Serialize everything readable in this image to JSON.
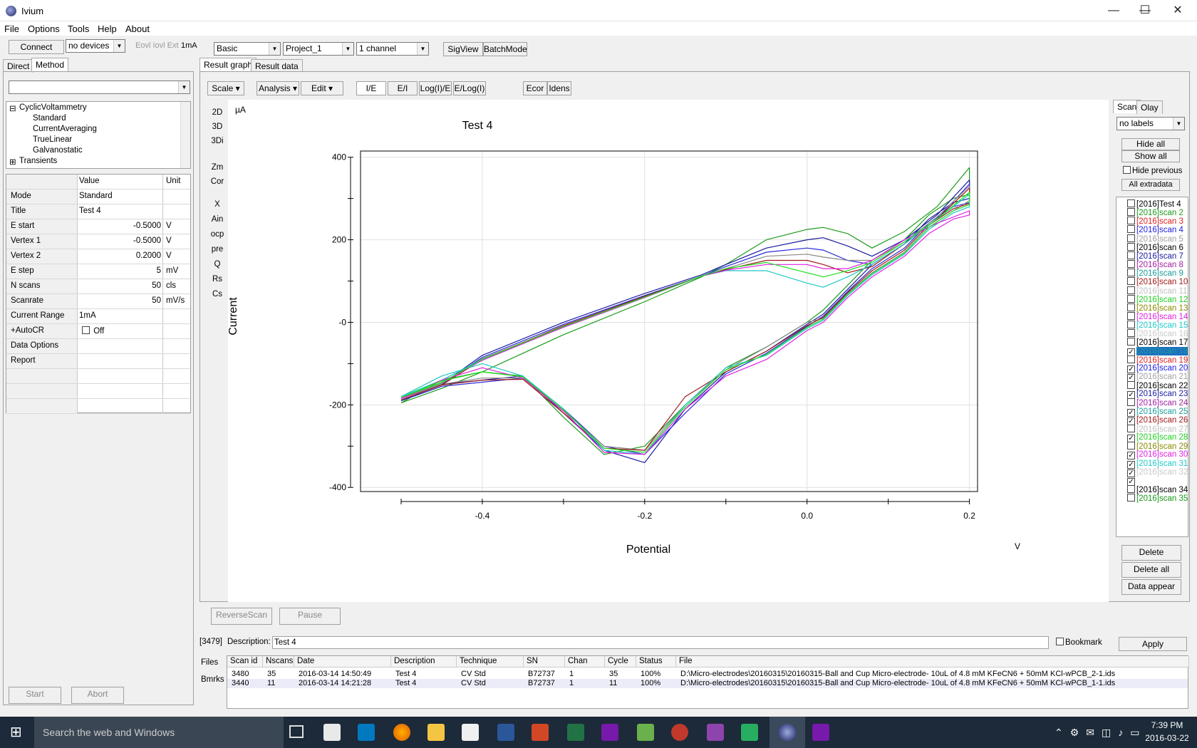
{
  "window": {
    "title": "Ivium",
    "minimize": "—",
    "maximize": "☐",
    "close": "✕"
  },
  "menu": [
    "File",
    "Options",
    "Tools",
    "Help",
    "About"
  ],
  "toolbar": {
    "connect": "Connect",
    "device": "no devices",
    "eovl": "Eovl Iovl Ext",
    "range": "1mA",
    "mode": "Basic",
    "project": "Project_1",
    "channel": "1 channel",
    "sigview": "SigView",
    "batchmode": "BatchMode"
  },
  "left_tabs": [
    "Direct",
    "Method"
  ],
  "tree": [
    "CyclicVoltammetry",
    "Standard",
    "CurrentAveraging",
    "TrueLinear",
    "Galvanostatic",
    "Transients"
  ],
  "params_header": {
    "value": "Value",
    "unit": "Unit"
  },
  "params": [
    {
      "name": "Mode",
      "value": "Standard",
      "unit": ""
    },
    {
      "name": "Title",
      "value": "Test 4",
      "unit": ""
    },
    {
      "name": "E start",
      "value": "-0.5000",
      "unit": "V"
    },
    {
      "name": "Vertex 1",
      "value": "-0.5000",
      "unit": "V"
    },
    {
      "name": "Vertex 2",
      "value": "0.2000",
      "unit": "V"
    },
    {
      "name": "E step",
      "value": "5",
      "unit": "mV"
    },
    {
      "name": "N scans",
      "value": "50",
      "unit": "cls"
    },
    {
      "name": "Scanrate",
      "value": "50",
      "unit": "mV/s"
    },
    {
      "name": "Current Range",
      "value": "1mA",
      "unit": ""
    },
    {
      "name": "+AutoCR",
      "value": "Off",
      "unit": ""
    },
    {
      "name": "Data Options",
      "value": "",
      "unit": ""
    },
    {
      "name": "Report",
      "value": "",
      "unit": ""
    }
  ],
  "left_buttons": {
    "start": "Start",
    "abort": "Abort"
  },
  "graph_tabs": [
    "Result graph",
    "Result data"
  ],
  "graph_toolbar": [
    "Scale",
    "Analysis",
    "Edit",
    "I/E",
    "E/I",
    "Log(I)/E",
    "E/Log(I)",
    "Ecor",
    "Idens"
  ],
  "graph_side": [
    "2D",
    "3D",
    "3Di",
    "Zm",
    "Cor",
    "X",
    "Ain",
    "ocp",
    "pre",
    "Q",
    "Rs",
    "Cs"
  ],
  "graph_buttons": {
    "reverse": "ReverseScan",
    "pause": "Pause"
  },
  "chart_data": {
    "type": "line",
    "title": "Test 4",
    "xlabel": "Potential",
    "ylabel": "Current",
    "xunit": "V",
    "yunit": "µA",
    "xlim": [
      -0.55,
      0.21
    ],
    "ylim": [
      -410,
      415
    ],
    "xticks": [
      "-0.4",
      "-0.2",
      "0.0",
      "0.2"
    ],
    "yticks": [
      "400",
      "200",
      "-0",
      "-200",
      "-400"
    ],
    "series": [
      {
        "color": "#1a9a1a",
        "x": [
          -0.5,
          -0.45,
          -0.4,
          -0.3,
          -0.2,
          -0.13,
          -0.1,
          -0.05,
          0.0,
          0.02,
          0.05,
          0.08,
          0.12,
          0.16,
          0.2,
          0.2,
          0.18,
          0.15,
          0.12,
          0.08,
          0.05,
          0.02,
          0.0,
          -0.05,
          -0.1,
          -0.15,
          -0.2,
          -0.25,
          -0.3,
          -0.35,
          -0.4,
          -0.45,
          -0.5
        ],
        "y": [
          -195,
          -160,
          -120,
          -30,
          50,
          110,
          140,
          200,
          225,
          230,
          215,
          180,
          220,
          280,
          375,
          310,
          300,
          260,
          200,
          150,
          90,
          30,
          0,
          -60,
          -110,
          -200,
          -300,
          -320,
          -230,
          -130,
          -120,
          -140,
          -195
        ]
      },
      {
        "color": "#1a1aa0",
        "x": [
          -0.5,
          -0.45,
          -0.4,
          -0.3,
          -0.2,
          -0.13,
          -0.1,
          -0.05,
          0.0,
          0.02,
          0.05,
          0.08,
          0.12,
          0.16,
          0.2,
          0.2,
          0.18,
          0.15,
          0.12,
          0.08,
          0.05,
          0.02,
          0.0,
          -0.05,
          -0.1,
          -0.15,
          -0.2,
          -0.25,
          -0.3,
          -0.35,
          -0.4,
          -0.45,
          -0.5
        ],
        "y": [
          -185,
          -150,
          -80,
          0,
          70,
          115,
          140,
          180,
          200,
          205,
          185,
          160,
          200,
          260,
          345,
          300,
          290,
          250,
          190,
          140,
          80,
          20,
          -5,
          -70,
          -120,
          -210,
          -340,
          -310,
          -220,
          -130,
          -140,
          -150,
          -185
        ]
      },
      {
        "color": "#2a2ad8",
        "x": [
          -0.5,
          -0.45,
          -0.4,
          -0.3,
          -0.2,
          -0.13,
          -0.1,
          -0.05,
          0.0,
          0.02,
          0.05,
          0.08,
          0.12,
          0.16,
          0.2,
          0.2,
          0.18,
          0.15,
          0.12,
          0.08,
          0.05,
          0.02,
          0.0,
          -0.05,
          -0.1,
          -0.15,
          -0.2,
          -0.25,
          -0.3,
          -0.35,
          -0.4,
          -0.45,
          -0.5
        ],
        "y": [
          -190,
          -150,
          -85,
          -5,
          65,
          112,
          135,
          170,
          180,
          175,
          150,
          140,
          190,
          250,
          335,
          290,
          280,
          240,
          180,
          130,
          75,
          15,
          -10,
          -75,
          -125,
          -220,
          -320,
          -300,
          -210,
          -135,
          -145,
          -155,
          -190
        ]
      },
      {
        "color": "#888888",
        "x": [
          -0.5,
          -0.45,
          -0.4,
          -0.3,
          -0.2,
          -0.13,
          -0.1,
          -0.05,
          0.0,
          0.02,
          0.05,
          0.08,
          0.12,
          0.16,
          0.2,
          0.2,
          0.18,
          0.15,
          0.12,
          0.08,
          0.05,
          0.02,
          0.0,
          -0.05,
          -0.1,
          -0.15,
          -0.2,
          -0.25,
          -0.3,
          -0.35,
          -0.4,
          -0.45,
          -0.5
        ],
        "y": [
          -185,
          -148,
          -88,
          -10,
          62,
          112,
          130,
          160,
          165,
          158,
          150,
          150,
          195,
          255,
          330,
          295,
          270,
          230,
          170,
          120,
          70,
          10,
          0,
          -60,
          -115,
          -200,
          -310,
          -300,
          -215,
          -135,
          -135,
          -150,
          -185
        ]
      },
      {
        "color": "#a01a1a",
        "x": [
          -0.5,
          -0.45,
          -0.4,
          -0.3,
          -0.2,
          -0.13,
          -0.1,
          -0.05,
          0.0,
          0.02,
          0.05,
          0.08,
          0.12,
          0.16,
          0.2,
          0.2,
          0.18,
          0.15,
          0.12,
          0.08,
          0.05,
          0.02,
          0.0,
          -0.05,
          -0.1,
          -0.15,
          -0.2,
          -0.25,
          -0.3,
          -0.35,
          -0.4,
          -0.45,
          -0.5
        ],
        "y": [
          -188,
          -152,
          -90,
          -8,
          63,
          112,
          128,
          150,
          150,
          140,
          120,
          135,
          190,
          250,
          325,
          288,
          275,
          235,
          175,
          125,
          72,
          12,
          -8,
          -70,
          -120,
          -180,
          -310,
          -305,
          -220,
          -138,
          -140,
          -152,
          -188
        ]
      },
      {
        "color": "#20c8c8",
        "x": [
          -0.5,
          -0.45,
          -0.4,
          -0.3,
          -0.2,
          -0.13,
          -0.1,
          -0.05,
          0.0,
          0.02,
          0.05,
          0.08,
          0.12,
          0.16,
          0.2,
          0.2,
          0.18,
          0.15,
          0.12,
          0.08,
          0.05,
          0.02,
          0.0,
          -0.05,
          -0.1,
          -0.15,
          -0.2,
          -0.25,
          -0.3,
          -0.35,
          -0.4,
          -0.45,
          -0.5
        ],
        "y": [
          -180,
          -140,
          -90,
          -12,
          60,
          112,
          125,
          125,
          95,
          85,
          110,
          140,
          190,
          250,
          310,
          280,
          265,
          225,
          165,
          115,
          65,
          5,
          -15,
          -80,
          -110,
          -200,
          -320,
          -310,
          -210,
          -130,
          -100,
          -130,
          -180
        ]
      },
      {
        "color": "#e020e0",
        "x": [
          -0.5,
          -0.45,
          -0.4,
          -0.3,
          -0.2,
          -0.13,
          -0.1,
          -0.05,
          0.0,
          0.02,
          0.05,
          0.08,
          0.12,
          0.16,
          0.2,
          0.2,
          0.18,
          0.15,
          0.12,
          0.08,
          0.05,
          0.02,
          0.0,
          -0.05,
          -0.1,
          -0.15,
          -0.2,
          -0.25,
          -0.3,
          -0.35,
          -0.4,
          -0.45,
          -0.5
        ],
        "y": [
          -185,
          -145,
          -92,
          -12,
          60,
          112,
          126,
          140,
          140,
          130,
          130,
          150,
          200,
          240,
          270,
          260,
          250,
          215,
          160,
          110,
          60,
          0,
          -20,
          -90,
          -130,
          -210,
          -320,
          -315,
          -215,
          -135,
          -110,
          -140,
          -185
        ]
      },
      {
        "color": "#20e020",
        "x": [
          -0.5,
          -0.45,
          -0.4,
          -0.3,
          -0.2,
          -0.13,
          -0.1,
          -0.05,
          0.0,
          0.02,
          0.05,
          0.08,
          0.12,
          0.16,
          0.2,
          0.2,
          0.18,
          0.15,
          0.12,
          0.08,
          0.05,
          0.02,
          0.0,
          -0.05,
          -0.1,
          -0.15,
          -0.2,
          -0.25,
          -0.3,
          -0.35,
          -0.4,
          -0.45,
          -0.5
        ],
        "y": [
          -182,
          -146,
          -90,
          -10,
          61,
          112,
          130,
          145,
          120,
          110,
          125,
          145,
          195,
          250,
          315,
          285,
          270,
          230,
          168,
          118,
          68,
          8,
          -12,
          -78,
          -115,
          -205,
          -315,
          -305,
          -212,
          -132,
          -120,
          -142,
          -182
        ]
      }
    ]
  },
  "scan_panel": {
    "tabs": [
      "Scan",
      "Olay"
    ],
    "labels_select": "no labels",
    "hide_all": "Hide all",
    "show_all": "Show all",
    "hide_previous": "Hide previous",
    "all_extradata": "All extradata",
    "delete": "Delete",
    "delete_all": "Delete all",
    "data_appear": "Data appear"
  },
  "scans": [
    {
      "label": "[2016]Test 4",
      "color": "#000000",
      "checked": false
    },
    {
      "label": "[2016]scan 2",
      "color": "#1a9a1a",
      "checked": false
    },
    {
      "label": "[2016]scan 3",
      "color": "#e02020",
      "checked": false
    },
    {
      "label": "[2016]scan 4",
      "color": "#2020e0",
      "checked": false
    },
    {
      "label": "[2016]scan 5",
      "color": "#a0a0a0",
      "checked": false
    },
    {
      "label": "[2016]scan 6",
      "color": "#000000",
      "checked": false
    },
    {
      "label": "[2016]scan 7",
      "color": "#1a1aa0",
      "checked": false
    },
    {
      "label": "[2016]scan 8",
      "color": "#a020a0",
      "checked": false
    },
    {
      "label": "[2016]scan 9",
      "color": "#1a9a9a",
      "checked": false
    },
    {
      "label": "[2016]scan 10",
      "color": "#a01a1a",
      "checked": false
    },
    {
      "label": "[2016]scan 11",
      "color": "#c0c0c0",
      "checked": false
    },
    {
      "label": "[2016]scan 12",
      "color": "#20d020",
      "checked": false
    },
    {
      "label": "[2016]scan 13",
      "color": "#8a8a00",
      "checked": false
    },
    {
      "label": "[2016]scan 14",
      "color": "#e020e0",
      "checked": false
    },
    {
      "label": "[2016]scan 15",
      "color": "#20c8c8",
      "checked": false
    },
    {
      "label": "[2016]scan 16",
      "color": "#c8c8c8",
      "checked": false
    },
    {
      "label": "[2016]scan 17",
      "color": "#000000",
      "checked": false
    },
    {
      "label": "[2016]scan 18",
      "color": "#1a9a9a",
      "checked": true
    },
    {
      "label": "[2016]scan 19",
      "color": "#e02020",
      "checked": false
    },
    {
      "label": "[2016]scan 20",
      "color": "#2020e0",
      "checked": true
    },
    {
      "label": "[2016]scan 21",
      "color": "#a0a0a0",
      "checked": true
    },
    {
      "label": "[2016]scan 22",
      "color": "#000000",
      "checked": false
    },
    {
      "label": "[2016]scan 23",
      "color": "#1a1aa0",
      "checked": true
    },
    {
      "label": "[2016]scan 24",
      "color": "#a020a0",
      "checked": false
    },
    {
      "label": "[2016]scan 25",
      "color": "#1a9a9a",
      "checked": true
    },
    {
      "label": "[2016]scan 26",
      "color": "#a01a1a",
      "checked": true
    },
    {
      "label": "[2016]scan 27",
      "color": "#c0c0c0",
      "checked": false
    },
    {
      "label": "[2016]scan 28",
      "color": "#20d020",
      "checked": true
    },
    {
      "label": "[2016]scan 29",
      "color": "#8a8a00",
      "checked": false
    },
    {
      "label": "[2016]scan 30",
      "color": "#e020e0",
      "checked": true
    },
    {
      "label": "[2016]scan 31",
      "color": "#20c8c8",
      "checked": true
    },
    {
      "label": "[2016]scan 32",
      "color": "#c8c8c8",
      "checked": true
    },
    {
      "label": "",
      "color": "#000000",
      "checked": true
    },
    {
      "label": "[2016]scan 34",
      "color": "#000000",
      "checked": false
    },
    {
      "label": "[2016]scan 35",
      "color": "#1a9a1a",
      "checked": false
    }
  ],
  "description": {
    "id": "[3479]",
    "label": "Description:",
    "value": "Test 4",
    "bookmark": "Bookmark",
    "apply": "Apply"
  },
  "bottom_tabs": [
    "Files",
    "Bmrks"
  ],
  "table": {
    "columns": [
      "Scan id",
      "Nscans",
      "Date",
      "Description",
      "Technique",
      "SN",
      "Chan",
      "Cycle",
      "Status",
      "File"
    ],
    "rows": [
      [
        "3480",
        "35",
        "2016-03-14 14:50:49",
        "Test 4",
        "CV Std",
        "B72737",
        "1",
        "35",
        "100%",
        "D:\\Micro-electrodes\\20160315\\20160315-Ball and Cup Micro-electrode- 10uL of 4.8 mM KFeCN6 + 50mM KCl-wPCB_2-1.ids"
      ],
      [
        "3440",
        "11",
        "2016-03-14 14:21:28",
        "Test 4",
        "CV Std",
        "B72737",
        "1",
        "11",
        "100%",
        "D:\\Micro-electrodes\\20160315\\20160315-Ball and Cup Micro-electrode- 10uL of 4.8 mM KFeCN6 + 50mM KCl-wPCB_1-1.ids"
      ]
    ]
  },
  "taskbar": {
    "search": "Search the web and Windows",
    "time": "7:39 PM",
    "date": "2016-03-22"
  }
}
